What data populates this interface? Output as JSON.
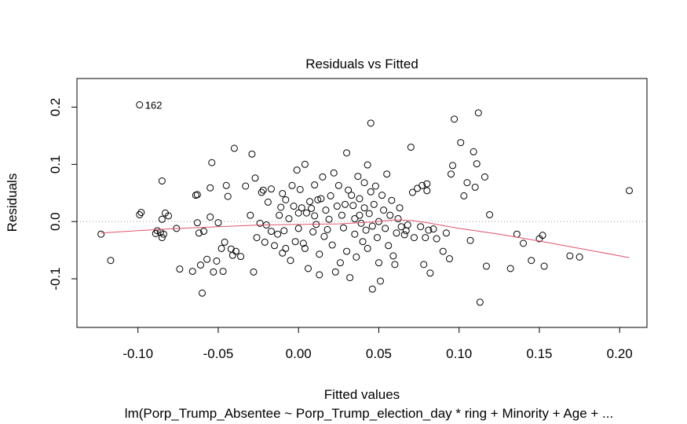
{
  "chart_data": {
    "type": "scatter",
    "title": "Residuals vs Fitted",
    "xlabel": "Fitted values",
    "ylabel": "Residuals",
    "subtitle": "lm(Porp_Trump_Absentee ~ Porp_Trump_election_day * ring + Minority + Age +  ...",
    "xlim": [
      -0.138,
      0.217
    ],
    "ylim": [
      -0.185,
      0.25
    ],
    "x_ticks": [
      -0.1,
      -0.05,
      0.0,
      0.05,
      0.1,
      0.15,
      0.2
    ],
    "x_tick_labels": [
      "-0.10",
      "-0.05",
      "0.00",
      "0.05",
      "0.10",
      "0.15",
      "0.20"
    ],
    "y_ticks": [
      -0.1,
      0.0,
      0.1,
      0.2
    ],
    "y_tick_labels": [
      "-0.1",
      "0.0",
      "0.1",
      "0.2"
    ],
    "reference_line": {
      "y": 0,
      "style": "dotted",
      "color": "#999999"
    },
    "point_color": "#000000",
    "smooth_color": "#DF536B",
    "annotations": [
      {
        "x": -0.099,
        "y": 0.204,
        "label": "162"
      },
      {
        "x": -0.099,
        "y": 0.204,
        "label": "1"
      }
    ],
    "smooth": [
      [
        -0.123,
        -0.02
      ],
      [
        -0.1,
        -0.016
      ],
      [
        -0.075,
        -0.012
      ],
      [
        -0.05,
        -0.009
      ],
      [
        -0.025,
        -0.006
      ],
      [
        0.0,
        -0.005
      ],
      [
        0.025,
        -0.004
      ],
      [
        0.045,
        -0.001
      ],
      [
        0.06,
        0.003
      ],
      [
        0.07,
        0.002
      ],
      [
        0.08,
        -0.002
      ],
      [
        0.09,
        -0.007
      ],
      [
        0.1,
        -0.012
      ],
      [
        0.125,
        -0.022
      ],
      [
        0.15,
        -0.034
      ],
      [
        0.175,
        -0.047
      ],
      [
        0.206,
        -0.063
      ]
    ],
    "points": [
      [
        -0.123,
        -0.022
      ],
      [
        -0.117,
        -0.068
      ],
      [
        -0.099,
        0.204
      ],
      [
        -0.099,
        0.012
      ],
      [
        -0.098,
        0.016
      ],
      [
        -0.089,
        -0.021
      ],
      [
        -0.088,
        -0.016
      ],
      [
        -0.086,
        -0.019
      ],
      [
        -0.085,
        0.004
      ],
      [
        -0.085,
        -0.028
      ],
      [
        -0.085,
        0.071
      ],
      [
        -0.084,
        -0.022
      ],
      [
        -0.083,
        0.015
      ],
      [
        -0.081,
        0.01
      ],
      [
        -0.076,
        -0.012
      ],
      [
        -0.074,
        -0.083
      ],
      [
        -0.066,
        -0.087
      ],
      [
        -0.064,
        0.046
      ],
      [
        -0.063,
        0.047
      ],
      [
        -0.063,
        -0.002
      ],
      [
        -0.062,
        -0.02
      ],
      [
        -0.061,
        -0.076
      ],
      [
        -0.06,
        -0.125
      ],
      [
        -0.059,
        -0.017
      ],
      [
        -0.057,
        -0.066
      ],
      [
        -0.055,
        0.008
      ],
      [
        -0.055,
        0.059
      ],
      [
        -0.054,
        0.103
      ],
      [
        -0.053,
        -0.088
      ],
      [
        -0.051,
        -0.069
      ],
      [
        -0.05,
        -0.002
      ],
      [
        -0.048,
        -0.047
      ],
      [
        -0.047,
        -0.087
      ],
      [
        -0.046,
        -0.036
      ],
      [
        -0.045,
        0.063
      ],
      [
        -0.044,
        0.044
      ],
      [
        -0.042,
        -0.048
      ],
      [
        -0.041,
        -0.059
      ],
      [
        -0.04,
        0.128
      ],
      [
        -0.039,
        -0.052
      ],
      [
        -0.036,
        -0.061
      ],
      [
        -0.033,
        0.062
      ],
      [
        -0.03,
        0.011
      ],
      [
        -0.029,
        0.118
      ],
      [
        -0.027,
        0.076
      ],
      [
        -0.028,
        -0.088
      ],
      [
        -0.026,
        -0.028
      ],
      [
        -0.024,
        -0.003
      ],
      [
        -0.023,
        0.051
      ],
      [
        -0.022,
        0.055
      ],
      [
        -0.021,
        -0.036
      ],
      [
        -0.02,
        -0.006
      ],
      [
        -0.019,
        0.034
      ],
      [
        -0.017,
        0.057
      ],
      [
        -0.017,
        -0.017
      ],
      [
        -0.015,
        -0.042
      ],
      [
        -0.013,
        -0.022
      ],
      [
        -0.012,
        0.011
      ],
      [
        -0.011,
        0.025
      ],
      [
        -0.01,
        -0.055
      ],
      [
        -0.01,
        0.049
      ],
      [
        -0.009,
        -0.016
      ],
      [
        -0.008,
        0.038
      ],
      [
        -0.008,
        -0.047
      ],
      [
        -0.006,
        0.005
      ],
      [
        -0.005,
        -0.068
      ],
      [
        -0.004,
        0.063
      ],
      [
        -0.003,
        0.027
      ],
      [
        -0.002,
        -0.035
      ],
      [
        -0.001,
        0.09
      ],
      [
        0.0,
        0.015
      ],
      [
        0.0,
        -0.012
      ],
      [
        0.001,
        0.056
      ],
      [
        0.002,
        0.024
      ],
      [
        0.003,
        -0.038
      ],
      [
        0.004,
        0.1
      ],
      [
        0.004,
        -0.047
      ],
      [
        0.005,
        0.015
      ],
      [
        0.006,
        -0.082
      ],
      [
        0.007,
        0.035
      ],
      [
        0.008,
        0.023
      ],
      [
        0.009,
        -0.018
      ],
      [
        0.01,
        0.064
      ],
      [
        0.01,
        0.01
      ],
      [
        0.011,
        -0.005
      ],
      [
        0.012,
        0.038
      ],
      [
        0.013,
        -0.057
      ],
      [
        0.013,
        -0.093
      ],
      [
        0.014,
        0.04
      ],
      [
        0.015,
        0.078
      ],
      [
        0.016,
        -0.026
      ],
      [
        0.017,
        0.02
      ],
      [
        0.018,
        -0.014
      ],
      [
        0.019,
        0.004
      ],
      [
        0.02,
        0.045
      ],
      [
        0.021,
        -0.041
      ],
      [
        0.022,
        0.085
      ],
      [
        0.023,
        -0.088
      ],
      [
        0.024,
        0.027
      ],
      [
        0.025,
        0.063
      ],
      [
        0.026,
        -0.072
      ],
      [
        0.027,
        0.011
      ],
      [
        0.028,
        -0.011
      ],
      [
        0.029,
        0.03
      ],
      [
        0.03,
        0.12
      ],
      [
        0.03,
        -0.052
      ],
      [
        0.031,
        0.055
      ],
      [
        0.032,
        -0.098
      ],
      [
        0.033,
        0.046
      ],
      [
        0.034,
        0.028
      ],
      [
        0.035,
        0.005
      ],
      [
        0.035,
        -0.022
      ],
      [
        0.036,
        -0.062
      ],
      [
        0.037,
        0.079
      ],
      [
        0.038,
        0.04
      ],
      [
        0.038,
        0.011
      ],
      [
        0.039,
        -0.003
      ],
      [
        0.04,
        -0.035
      ],
      [
        0.041,
        0.068
      ],
      [
        0.041,
        0.024
      ],
      [
        0.042,
        -0.015
      ],
      [
        0.043,
        0.099
      ],
      [
        0.043,
        -0.047
      ],
      [
        0.044,
        0.014
      ],
      [
        0.045,
        0.052
      ],
      [
        0.045,
        0.172
      ],
      [
        0.046,
        -0.118
      ],
      [
        0.046,
        -0.008
      ],
      [
        0.047,
        0.03
      ],
      [
        0.048,
        0.062
      ],
      [
        0.049,
        -0.028
      ],
      [
        0.05,
        0.0
      ],
      [
        0.05,
        -0.072
      ],
      [
        0.051,
        -0.104
      ],
      [
        0.052,
        0.046
      ],
      [
        0.053,
        0.02
      ],
      [
        0.054,
        -0.012
      ],
      [
        0.055,
        0.083
      ],
      [
        0.056,
        -0.042
      ],
      [
        0.057,
        0.011
      ],
      [
        0.058,
        0.037
      ],
      [
        0.059,
        -0.06
      ],
      [
        0.06,
        -0.075
      ],
      [
        0.061,
        -0.02
      ],
      [
        0.062,
        0.005
      ],
      [
        0.063,
        0.024
      ],
      [
        0.064,
        -0.009
      ],
      [
        0.066,
        -0.023
      ],
      [
        0.067,
        -0.016
      ],
      [
        0.068,
        -0.006
      ],
      [
        0.07,
        0.13
      ],
      [
        0.071,
        0.051
      ],
      [
        0.072,
        -0.028
      ],
      [
        0.074,
        0.058
      ],
      [
        0.076,
        -0.009
      ],
      [
        0.077,
        0.063
      ],
      [
        0.078,
        -0.075
      ],
      [
        0.079,
        -0.028
      ],
      [
        0.08,
        0.054
      ],
      [
        0.08,
        0.066
      ],
      [
        0.081,
        -0.015
      ],
      [
        0.082,
        -0.09
      ],
      [
        0.084,
        -0.013
      ],
      [
        0.086,
        -0.03
      ],
      [
        0.09,
        -0.052
      ],
      [
        0.092,
        -0.02
      ],
      [
        0.094,
        -0.065
      ],
      [
        0.095,
        0.083
      ],
      [
        0.096,
        0.098
      ],
      [
        0.097,
        0.179
      ],
      [
        0.101,
        0.138
      ],
      [
        0.103,
        0.045
      ],
      [
        0.105,
        0.068
      ],
      [
        0.107,
        -0.033
      ],
      [
        0.109,
        0.122
      ],
      [
        0.11,
        0.06
      ],
      [
        0.111,
        0.101
      ],
      [
        0.112,
        0.19
      ],
      [
        0.113,
        -0.141
      ],
      [
        0.116,
        0.078
      ],
      [
        0.117,
        -0.078
      ],
      [
        0.119,
        0.012
      ],
      [
        0.132,
        -0.082
      ],
      [
        0.136,
        -0.022
      ],
      [
        0.14,
        -0.038
      ],
      [
        0.145,
        -0.068
      ],
      [
        0.15,
        -0.03
      ],
      [
        0.152,
        -0.024
      ],
      [
        0.153,
        -0.078
      ],
      [
        0.169,
        -0.06
      ],
      [
        0.175,
        -0.062
      ],
      [
        0.206,
        0.054
      ]
    ]
  }
}
